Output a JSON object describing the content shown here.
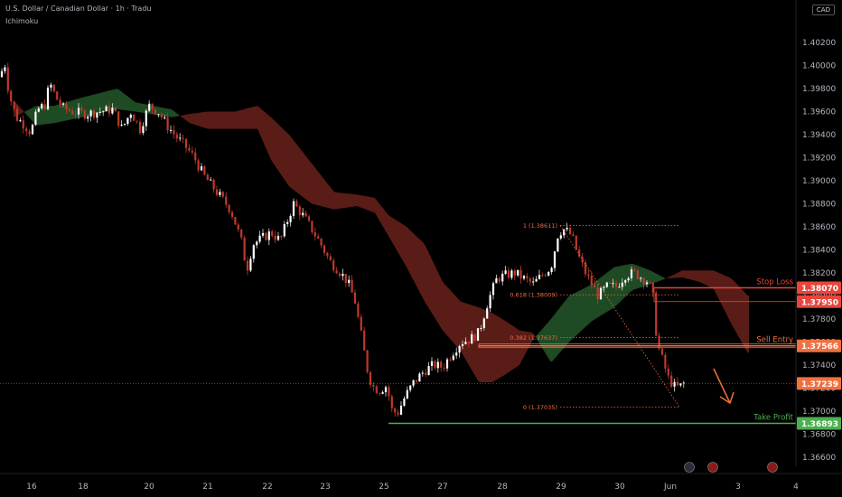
{
  "header": {
    "title": "U.S. Dollar / Canadian Dollar · 1h · Tradu",
    "indicator": "Ichimoku"
  },
  "currency_label": "CAD",
  "chart_data": {
    "type": "candlestick",
    "x_ticks": [
      "16",
      "18",
      "20",
      "21",
      "22",
      "23",
      "25",
      "27",
      "28",
      "29",
      "30",
      "Jun",
      "3",
      "4"
    ],
    "y_ticks": [
      "1.40200",
      "1.40000",
      "1.39800",
      "1.39600",
      "1.39400",
      "1.39200",
      "1.39000",
      "1.38800",
      "1.38600",
      "1.38400",
      "1.38200",
      "1.38000",
      "1.37800",
      "1.37600",
      "1.37400",
      "1.37200",
      "1.37000",
      "1.36800",
      "1.36600"
    ],
    "ylim": [
      1.3652,
      1.4031
    ],
    "price_anchors": [
      [
        0,
        1.399
      ],
      [
        5,
        1.4003
      ],
      [
        10,
        1.3975
      ],
      [
        18,
        1.3955
      ],
      [
        25,
        1.395
      ],
      [
        34,
        1.3942
      ],
      [
        42,
        1.3962
      ],
      [
        50,
        1.3966
      ],
      [
        55,
        1.3985
      ],
      [
        62,
        1.3972
      ],
      [
        70,
        1.3963
      ],
      [
        80,
        1.396
      ],
      [
        95,
        1.3958
      ],
      [
        110,
        1.396
      ],
      [
        125,
        1.3962
      ],
      [
        135,
        1.3945
      ],
      [
        145,
        1.396
      ],
      [
        155,
        1.3945
      ],
      [
        165,
        1.3965
      ],
      [
        175,
        1.396
      ],
      [
        185,
        1.3948
      ],
      [
        195,
        1.3938
      ],
      [
        205,
        1.393
      ],
      [
        215,
        1.392
      ],
      [
        225,
        1.3905
      ],
      [
        235,
        1.3895
      ],
      [
        245,
        1.3885
      ],
      [
        255,
        1.3875
      ],
      [
        262,
        1.386
      ],
      [
        268,
        1.3845
      ],
      [
        273,
        1.3822
      ],
      [
        280,
        1.3845
      ],
      [
        290,
        1.385
      ],
      [
        300,
        1.3855
      ],
      [
        310,
        1.3848
      ],
      [
        318,
        1.3865
      ],
      [
        325,
        1.388
      ],
      [
        335,
        1.387
      ],
      [
        345,
        1.3858
      ],
      [
        355,
        1.3845
      ],
      [
        365,
        1.383
      ],
      [
        375,
        1.3822
      ],
      [
        385,
        1.3812
      ],
      [
        393,
        1.3795
      ],
      [
        400,
        1.3765
      ],
      [
        408,
        1.373
      ],
      [
        414,
        1.372
      ],
      [
        420,
        1.3718
      ],
      [
        428,
        1.3722
      ],
      [
        434,
        1.37
      ],
      [
        440,
        1.3698
      ],
      [
        448,
        1.3712
      ],
      [
        458,
        1.3725
      ],
      [
        470,
        1.3735
      ],
      [
        480,
        1.374
      ],
      [
        490,
        1.3738
      ],
      [
        500,
        1.375
      ],
      [
        510,
        1.376
      ],
      [
        520,
        1.3762
      ],
      [
        530,
        1.3768
      ],
      [
        540,
        1.3795
      ],
      [
        550,
        1.3815
      ],
      [
        560,
        1.3818
      ],
      [
        570,
        1.382
      ],
      [
        580,
        1.3815
      ],
      [
        590,
        1.381
      ],
      [
        600,
        1.3818
      ],
      [
        610,
        1.3825
      ],
      [
        618,
        1.3855
      ],
      [
        625,
        1.3858
      ],
      [
        633,
        1.3852
      ],
      [
        640,
        1.3835
      ],
      [
        648,
        1.382
      ],
      [
        655,
        1.381
      ],
      [
        662,
        1.38
      ],
      [
        672,
        1.3808
      ],
      [
        682,
        1.3808
      ],
      [
        692,
        1.3818
      ],
      [
        702,
        1.382
      ],
      [
        712,
        1.3815
      ],
      [
        718,
        1.3812
      ],
      [
        724,
        1.3795
      ],
      [
        727,
        1.376
      ],
      [
        733,
        1.3745
      ],
      [
        740,
        1.3728
      ],
      [
        748,
        1.372
      ],
      [
        754,
        1.3722
      ],
      [
        760,
        1.3726
      ]
    ],
    "cloud_anchors": [
      [
        15,
        1.3955,
        1.397
      ],
      [
        40,
        1.3965,
        1.3948
      ],
      [
        60,
        1.3965,
        1.395
      ],
      [
        90,
        1.3972,
        1.3955
      ],
      [
        130,
        1.398,
        1.3962
      ],
      [
        150,
        1.3968,
        1.396
      ],
      [
        190,
        1.3962,
        1.3955
      ],
      [
        210,
        1.395,
        1.3958
      ],
      [
        230,
        1.3945,
        1.396
      ],
      [
        260,
        1.3945,
        1.396
      ],
      [
        285,
        1.3945,
        1.3965
      ],
      [
        300,
        1.3918,
        1.3955
      ],
      [
        320,
        1.3895,
        1.394
      ],
      [
        345,
        1.388,
        1.3915
      ],
      [
        370,
        1.3875,
        1.389
      ],
      [
        395,
        1.3878,
        1.3888
      ],
      [
        415,
        1.3872,
        1.3885
      ],
      [
        430,
        1.3852,
        1.387
      ],
      [
        450,
        1.3825,
        1.386
      ],
      [
        470,
        1.3795,
        1.3845
      ],
      [
        490,
        1.377,
        1.3812
      ],
      [
        510,
        1.3752,
        1.3795
      ],
      [
        530,
        1.3725,
        1.379
      ],
      [
        545,
        1.3725,
        1.3785
      ],
      [
        560,
        1.3732,
        1.3778
      ],
      [
        575,
        1.374,
        1.377
      ],
      [
        590,
        1.3762,
        1.3768
      ],
      [
        610,
        1.378,
        1.3742
      ],
      [
        630,
        1.38,
        1.376
      ],
      [
        655,
        1.381,
        1.3778
      ],
      [
        680,
        1.3825,
        1.379
      ],
      [
        700,
        1.3828,
        1.3805
      ],
      [
        720,
        1.3822,
        1.381
      ],
      [
        737,
        1.3815,
        1.3815
      ],
      [
        755,
        1.3816,
        1.3822
      ],
      [
        775,
        1.3812,
        1.3822
      ],
      [
        790,
        1.3806,
        1.3822
      ],
      [
        810,
        1.3775,
        1.3815
      ],
      [
        828,
        1.375,
        1.38
      ]
    ],
    "levels": [
      {
        "name": "Stop Loss",
        "price_label": "1.38070",
        "value": 1.3807,
        "color": "#e8453c"
      },
      {
        "name": "Sell Entry",
        "price_label": "1.37566",
        "value": 1.37566,
        "color": "#f07040"
      },
      {
        "name": "Take Profit",
        "price_label": "1.36893",
        "value": 1.36893,
        "color": "#4caf50"
      }
    ],
    "fib_levels": [
      {
        "label": "1 (1.38611)",
        "value": 1.38611
      },
      {
        "label": "0.618 (1.38009)",
        "value": 1.38009
      },
      {
        "label": "0.382 (1.37637)",
        "value": 1.37637
      },
      {
        "label": "0 (1.37035)",
        "value": 1.37035
      }
    ],
    "extra_price_labels": [
      {
        "text": "1.37950",
        "value": 1.3795,
        "color": "#e8453c"
      },
      {
        "text": "1.37239",
        "value": 1.37239,
        "color": "#f07040"
      }
    ],
    "current_price": 1.37239,
    "direction": "down"
  }
}
